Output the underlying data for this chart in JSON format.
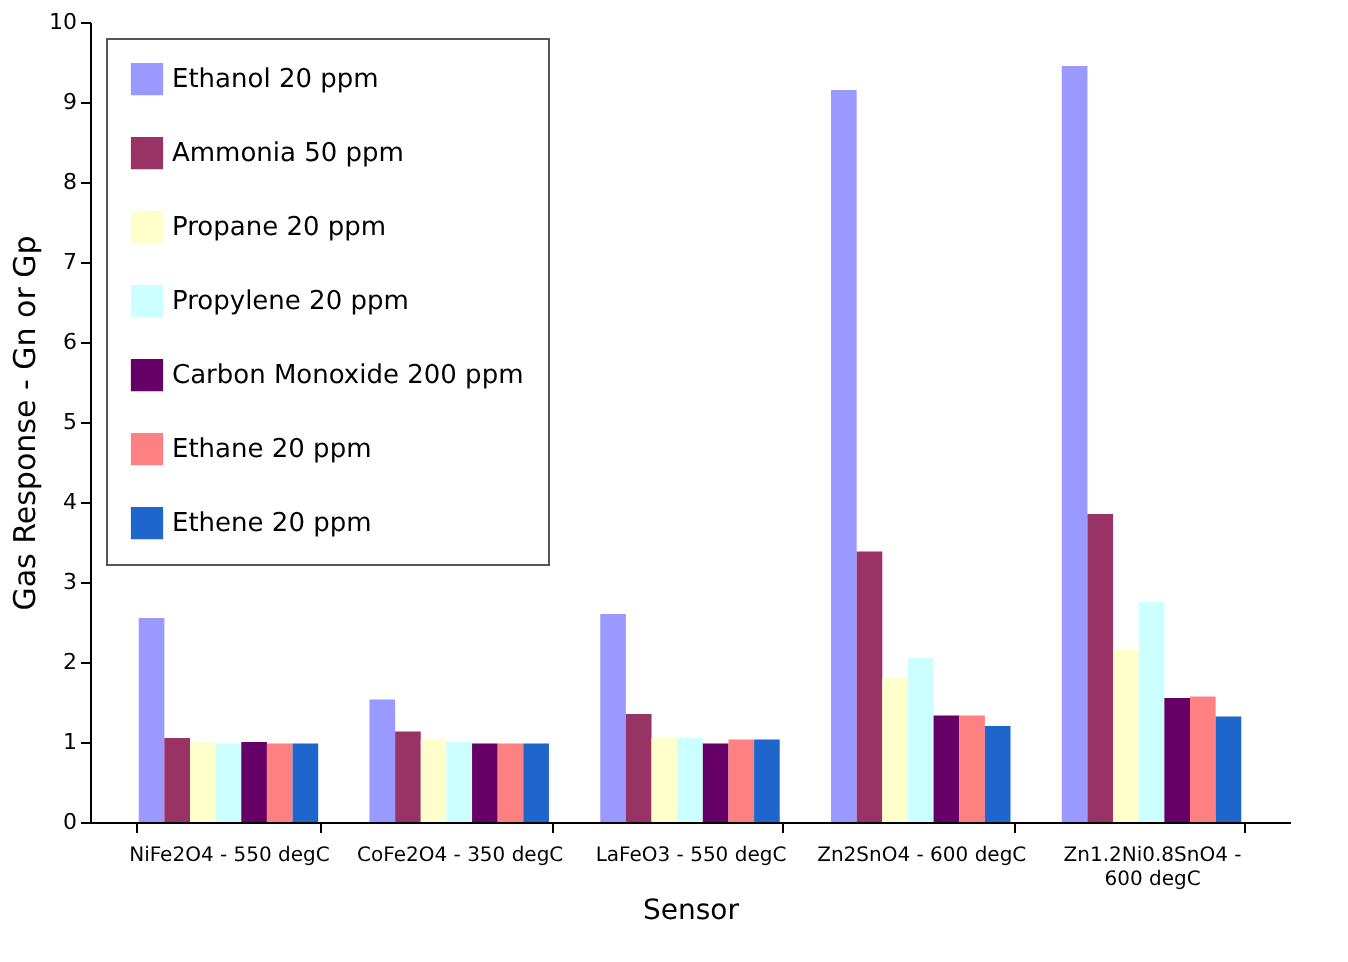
{
  "chart_data": {
    "type": "bar",
    "xlabel": "Sensor",
    "ylabel": "Gas Response - Gn or Gp",
    "categories": [
      "NiFe2O4 - 550 degC",
      "CoFe2O4 - 350 degC",
      "LaFeO3 - 550 degC",
      "Zn2SnO4 - 600 degC",
      "Zn1.2Ni0.8SnO4 - 600 degC"
    ],
    "series": [
      {
        "name": "Ethanol 20 ppm",
        "color": "#9999ff",
        "values": [
          2.55,
          1.53,
          2.6,
          9.15,
          9.45
        ]
      },
      {
        "name": "Ammonia 50 ppm",
        "color": "#993366",
        "values": [
          1.05,
          1.13,
          1.35,
          3.38,
          3.85
        ]
      },
      {
        "name": "Propane 20 ppm",
        "color": "#ffffcc",
        "values": [
          1.0,
          1.04,
          1.05,
          1.8,
          2.15
        ]
      },
      {
        "name": "Propylene 20 ppm",
        "color": "#ccffff",
        "values": [
          0.98,
          1.0,
          1.05,
          2.05,
          2.75
        ]
      },
      {
        "name": "Carbon Monoxide 200 ppm",
        "color": "#660066",
        "values": [
          1.0,
          0.98,
          0.98,
          1.33,
          1.55
        ]
      },
      {
        "name": "Ethane 20 ppm",
        "color": "#ff8080",
        "values": [
          0.98,
          0.98,
          1.03,
          1.33,
          1.57
        ]
      },
      {
        "name": "Ethene 20 ppm",
        "color": "#1f66cc",
        "values": [
          0.98,
          0.98,
          1.03,
          1.2,
          1.32
        ]
      }
    ],
    "ylim": [
      0,
      10
    ],
    "yticks": [
      0,
      1,
      2,
      3,
      4,
      5,
      6,
      7,
      8,
      9,
      10
    ],
    "grid": false,
    "legend": "top left"
  }
}
